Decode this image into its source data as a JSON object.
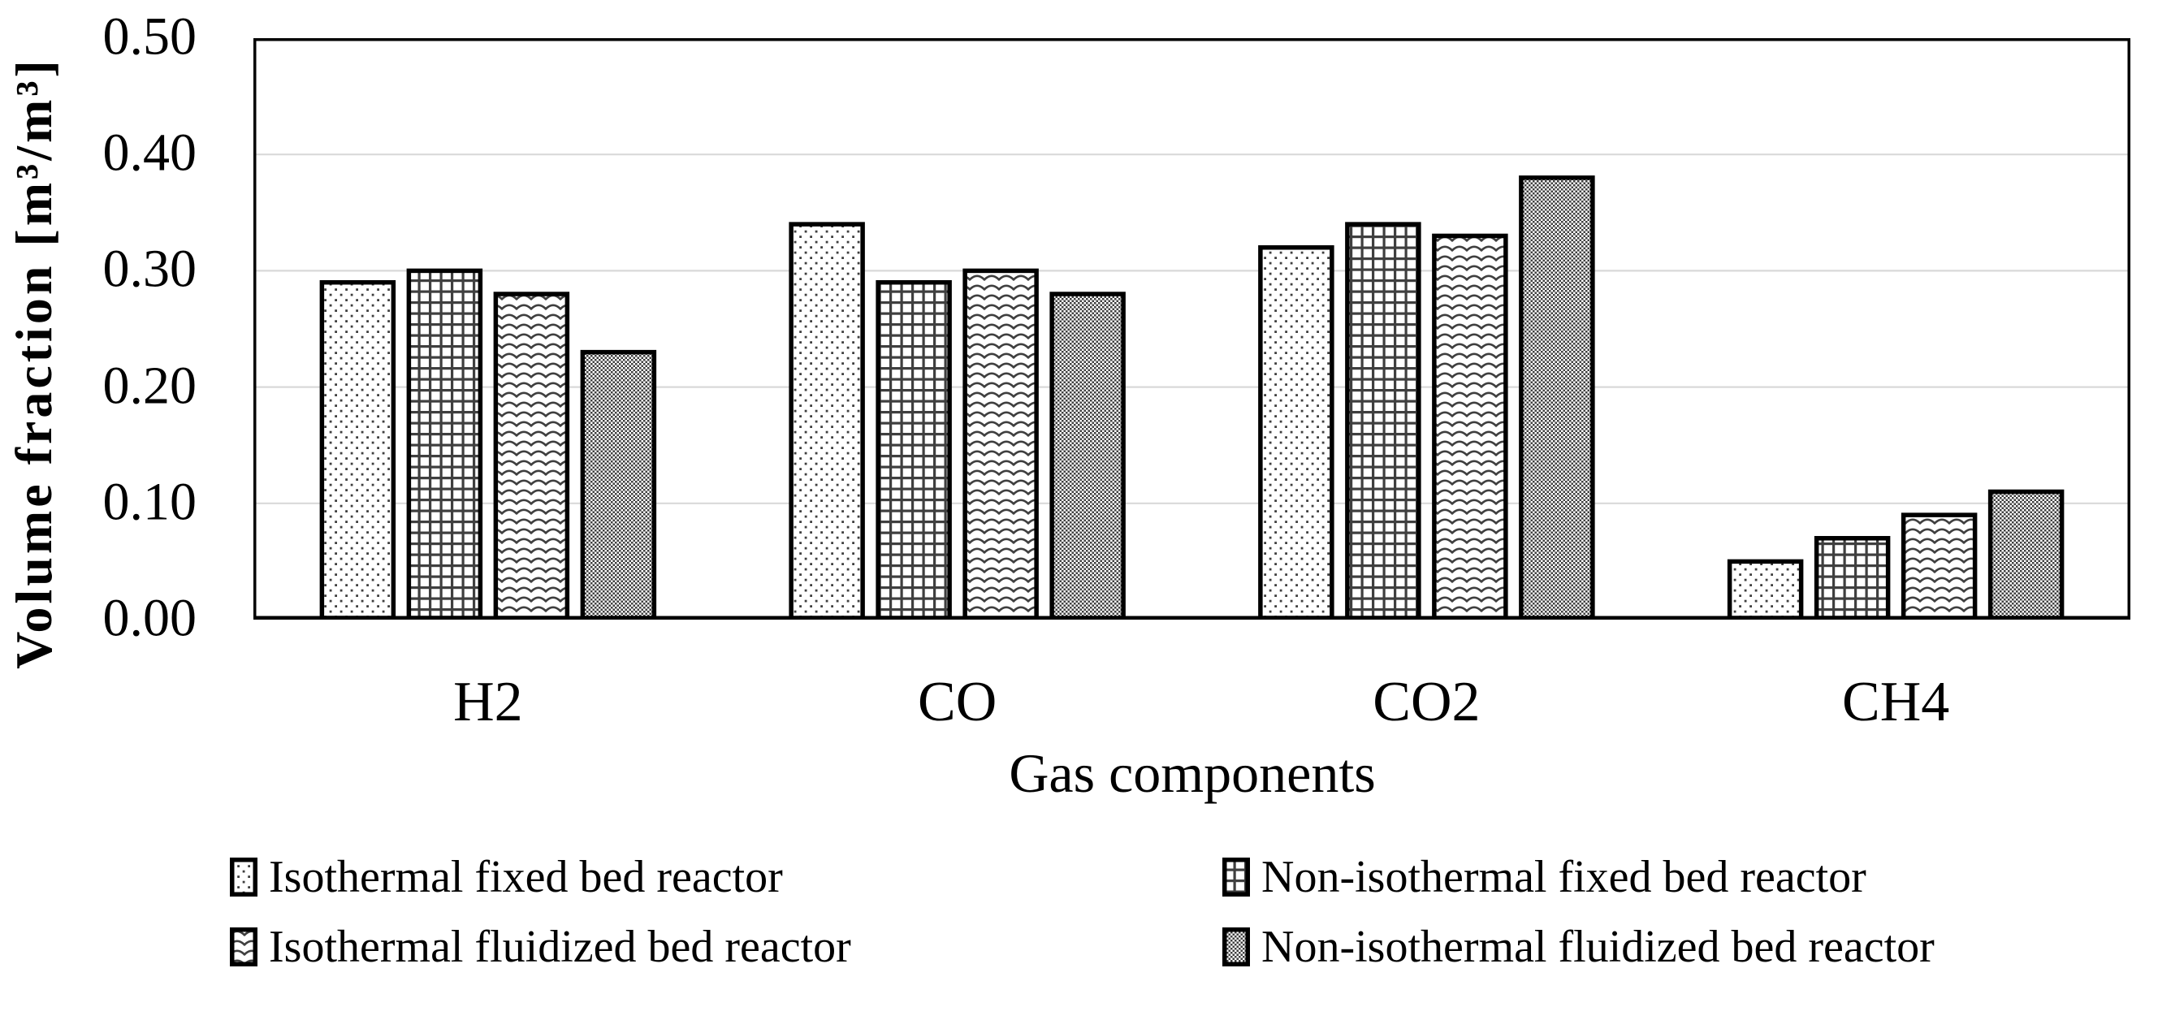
{
  "chart_data": {
    "type": "bar",
    "title": "",
    "xlabel": "Gas components",
    "ylabel": "Volume fraction [m³/m³]",
    "categories": [
      "H2",
      "CO",
      "CO2",
      "CH4"
    ],
    "series": [
      {
        "name": "Isothermal fixed bed reactor",
        "pattern": "dots",
        "values": [
          0.29,
          0.34,
          0.32,
          0.05
        ]
      },
      {
        "name": "Non-isothermal fixed bed reactor",
        "pattern": "grid",
        "values": [
          0.3,
          0.29,
          0.34,
          0.07
        ]
      },
      {
        "name": "Isothermal fluidized bed reactor",
        "pattern": "waves",
        "values": [
          0.28,
          0.3,
          0.33,
          0.09
        ]
      },
      {
        "name": "Non-isothermal fluidized bed reactor",
        "pattern": "checker",
        "values": [
          0.23,
          0.28,
          0.38,
          0.11
        ]
      }
    ],
    "ylim": [
      0,
      0.5
    ],
    "ytick_step": 0.1,
    "ytick_labels": [
      "0.00",
      "0.10",
      "0.20",
      "0.30",
      "0.40",
      "0.50"
    ],
    "grid": "horizontal",
    "legend_position": "bottom",
    "colors": {
      "background": "#ffffff",
      "text": "#000000",
      "frame": "#000000",
      "bar_stroke": "#000000",
      "pattern_ink": "#3f3f3f",
      "gridline": "#d9d9d9"
    }
  }
}
